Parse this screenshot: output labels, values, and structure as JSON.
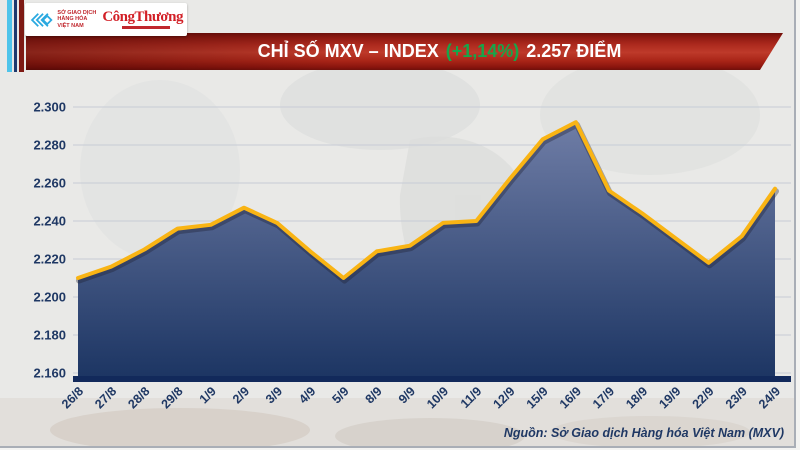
{
  "header": {
    "logo_box": {
      "org_line1": "SỞ GIAO DỊCH",
      "org_line2": "HÀNG HÓA",
      "org_line3": "VIỆT NAM",
      "newspaper_name": "CôngThương"
    },
    "banner": {
      "title": "CHỈ SỐ MXV – INDEX",
      "change_percent": "(+1,14%)",
      "points_value": "2.257 ĐIỂM"
    }
  },
  "chart_data": {
    "type": "area",
    "title": "CHỈ SỐ MXV – INDEX",
    "categories": [
      "26/8",
      "27/8",
      "28/8",
      "29/8",
      "1/9",
      "2/9",
      "3/9",
      "4/9",
      "5/9",
      "8/9",
      "9/9",
      "10/9",
      "11/9",
      "12/9",
      "15/9",
      "16/9",
      "17/9",
      "18/9",
      "19/9",
      "22/9",
      "23/9",
      "24/9"
    ],
    "values": [
      2.21,
      2.216,
      2.225,
      2.236,
      2.238,
      2.247,
      2.239,
      2.224,
      2.21,
      2.224,
      2.227,
      2.239,
      2.24,
      2.262,
      2.283,
      2.292,
      2.256,
      2.244,
      2.231,
      2.218,
      2.232,
      2.257
    ],
    "ylim": [
      2.16,
      2.3
    ],
    "yticks": [
      {
        "value": 2.3,
        "label": "2.300"
      },
      {
        "value": 2.28,
        "label": "2.280"
      },
      {
        "value": 2.26,
        "label": "2.260"
      },
      {
        "value": 2.24,
        "label": "2.240"
      },
      {
        "value": 2.22,
        "label": "2.220"
      },
      {
        "value": 2.2,
        "label": "2.200"
      },
      {
        "value": 2.18,
        "label": "2.180"
      },
      {
        "value": 2.16,
        "label": "2.160"
      }
    ],
    "grid": true,
    "legend": "none",
    "colors": {
      "line": "#f9b414",
      "line_shadow": "rgba(30,30,45,0.35)",
      "area_top": "#6f7da6",
      "area_bottom": "#1b3462",
      "axis": "#12295b",
      "tick_label": "#1f3864",
      "grid_line": "#c7ccd6"
    }
  },
  "footer": {
    "source": "Nguồn: Sở Giao dịch Hàng hóa Việt Nam (MXV)"
  }
}
